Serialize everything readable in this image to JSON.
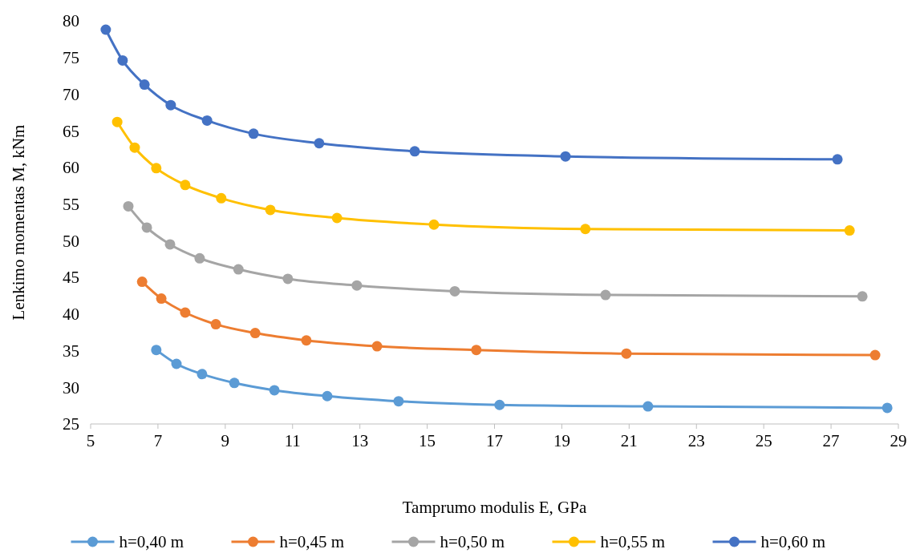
{
  "chart_data": {
    "type": "line",
    "xlabel": "Tamprumo modulis E, GPa",
    "ylabel": "Lenkimo momentas M, kNm",
    "xlim": [
      5,
      29
    ],
    "xticks": [
      5,
      7,
      9,
      11,
      13,
      15,
      17,
      19,
      21,
      23,
      25,
      27,
      29
    ],
    "ylim": [
      25,
      80
    ],
    "yticks": [
      25,
      30,
      35,
      40,
      45,
      50,
      55,
      60,
      65,
      70,
      75,
      80
    ],
    "grid": false,
    "legend": "bottom",
    "marker": "circle",
    "line_style": "solid",
    "series": [
      {
        "name": "h=0,40 m",
        "color": "#5b9bd5",
        "x": [
          6.95,
          7.55,
          8.31,
          9.27,
          10.46,
          12.03,
          14.15,
          17.15,
          21.56,
          28.67
        ],
        "values": [
          35.1,
          33.2,
          31.8,
          30.6,
          29.6,
          28.8,
          28.1,
          27.6,
          27.4,
          27.2
        ]
      },
      {
        "name": "h=0,45 m",
        "color": "#ed7d31",
        "x": [
          6.53,
          7.1,
          7.81,
          8.72,
          9.89,
          11.41,
          13.51,
          16.46,
          20.92,
          28.31
        ],
        "values": [
          44.4,
          42.1,
          40.2,
          38.6,
          37.4,
          36.4,
          35.6,
          35.1,
          34.6,
          34.4
        ]
      },
      {
        "name": "h=0,50 m",
        "color": "#a5a5a5",
        "x": [
          6.12,
          6.67,
          7.36,
          8.24,
          9.39,
          10.86,
          12.91,
          15.82,
          20.3,
          27.93
        ],
        "values": [
          54.7,
          51.8,
          49.5,
          47.6,
          46.1,
          44.8,
          43.9,
          43.1,
          42.6,
          42.4
        ]
      },
      {
        "name": "h=0,55 m",
        "color": "#ffc000",
        "x": [
          5.79,
          6.31,
          6.95,
          7.81,
          8.88,
          10.34,
          12.32,
          15.2,
          19.7,
          27.55
        ],
        "values": [
          66.2,
          62.7,
          59.9,
          57.6,
          55.8,
          54.2,
          53.1,
          52.2,
          51.6,
          51.4
        ]
      },
      {
        "name": "h=0,60 m",
        "color": "#4472c4",
        "x": [
          5.45,
          5.95,
          6.6,
          7.38,
          8.46,
          9.84,
          11.79,
          14.63,
          19.11,
          27.19
        ],
        "values": [
          78.8,
          74.6,
          71.3,
          68.5,
          66.4,
          64.6,
          63.3,
          62.2,
          61.5,
          61.1
        ]
      }
    ]
  }
}
